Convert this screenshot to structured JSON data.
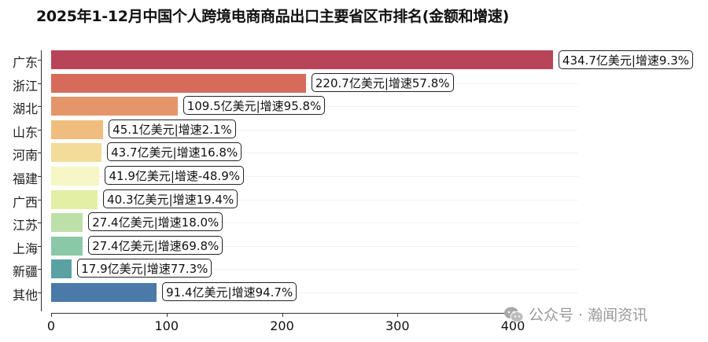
{
  "chart_data": {
    "type": "bar",
    "orientation": "horizontal",
    "title": "2025年1-12月中国个人跨境电商商品出口主要省区市排名(金额和增速)",
    "xlabel": "",
    "ylabel": "",
    "xlim": [
      0,
      450
    ],
    "xticks": [
      0,
      100,
      200,
      300,
      400
    ],
    "categories": [
      "广东",
      "浙江",
      "湖北",
      "山东",
      "河南",
      "福建",
      "广西",
      "江苏",
      "上海",
      "新疆",
      "其他"
    ],
    "series": [
      {
        "name": "出口金额(亿美元)",
        "values": [
          434.7,
          220.7,
          109.5,
          45.1,
          43.7,
          41.9,
          40.3,
          27.4,
          27.4,
          17.9,
          91.4
        ]
      },
      {
        "name": "增速(%)",
        "values": [
          9.3,
          57.8,
          95.8,
          2.1,
          16.8,
          -48.9,
          19.4,
          18.0,
          69.8,
          77.3,
          94.7
        ]
      }
    ],
    "labels": [
      "434.7亿美元|增速9.3%",
      "220.7亿美元|增速57.8%",
      "109.5亿美元|增速95.8%",
      "45.1亿美元|增速2.1%",
      "43.7亿美元|增速16.8%",
      "41.9亿美元|增速-48.9%",
      "40.3亿美元|增速19.4%",
      "27.4亿美元|增速18.0%",
      "27.4亿美元|增速69.8%",
      "17.9亿美元|增速77.3%",
      "91.4亿美元|增速94.7%"
    ],
    "colors": [
      "#b84459",
      "#d76b5b",
      "#e4966a",
      "#efbd7e",
      "#f3dc9a",
      "#f6f6c6",
      "#e4efa6",
      "#bde0a9",
      "#8ac8a7",
      "#5aa1a2",
      "#4c7aa8"
    ],
    "grid": true,
    "legend": "none"
  },
  "watermark": {
    "text": "公众号 · 瀚闻资讯",
    "icon": "wechat-icon"
  }
}
